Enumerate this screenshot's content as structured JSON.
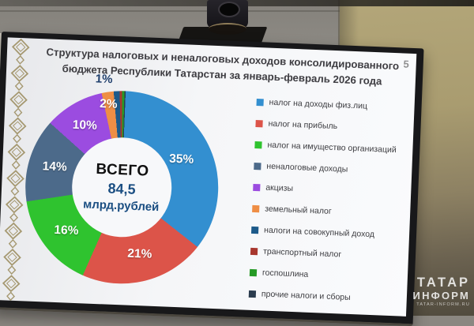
{
  "slide": {
    "title_line1": "Структура налоговых и неналоговых доходов консолидированного",
    "title_line2": "бюджета Республики Татарстан за январь-февраль 2026 года",
    "page_number": "5",
    "center": {
      "label": "ВСЕГО",
      "value": "84,5",
      "unit": "млрд.рублей"
    }
  },
  "chart_data": {
    "type": "pie",
    "subtype": "donut",
    "title": "Структура налоговых и неналоговых доходов консолидированного бюджета Республики Татарстан за январь-февраль 2026 года",
    "center_total": "ВСЕГО 84,5 млрд.рублей",
    "start_angle": "12 o'clock",
    "direction": "clockwise",
    "legend_position": "right",
    "segments": [
      {
        "name": "налог на доходы физ.лиц",
        "value": 35,
        "label": "35%",
        "color": "#338fd0"
      },
      {
        "name": "налог на прибыль",
        "value": 21,
        "label": "21%",
        "color": "#dc5449"
      },
      {
        "name": "налог на имущество организаций",
        "value": 16,
        "label": "16%",
        "color": "#2fc32f"
      },
      {
        "name": "неналоговые доходы",
        "value": 14,
        "label": "14%",
        "color": "#4c6a8a"
      },
      {
        "name": "акцизы",
        "value": 10,
        "label": "10%",
        "color": "#9b4ce0"
      },
      {
        "name": "земельный налог",
        "value": 2,
        "label": "2%",
        "color": "#ee8e45"
      },
      {
        "name": "налоги на совокупный доход",
        "value": 1,
        "label": "1%",
        "color": "#1c5a8a"
      },
      {
        "name": "транспортный налог",
        "value": 0.4,
        "label": null,
        "color": "#a8372e"
      },
      {
        "name": "госпошлина",
        "value": 0.4,
        "label": null,
        "color": "#259a25"
      },
      {
        "name": "прочие налоги и сборы",
        "value": 0.2,
        "label": null,
        "color": "#2b3c4e"
      }
    ]
  },
  "watermark": {
    "line1": "ТАТАР",
    "line2": "ИНФОРМ",
    "line3": "TATAR-INFORM.RU"
  }
}
